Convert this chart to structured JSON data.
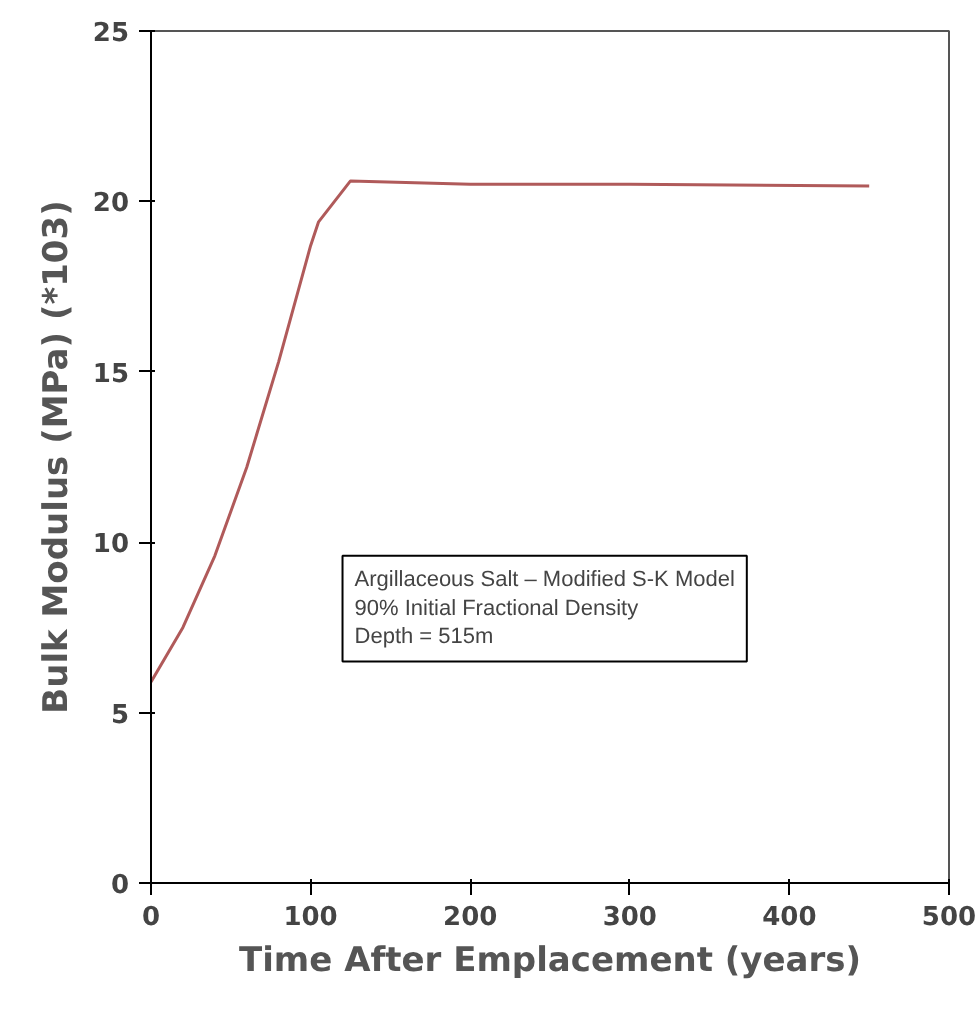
{
  "chart_data": {
    "type": "line",
    "xlabel": "Time After Emplacement (years)",
    "ylabel": "Bulk Modulus (MPa) (*103)",
    "x": [
      0,
      20,
      40,
      60,
      80,
      100,
      105,
      115,
      125,
      200,
      300,
      450
    ],
    "series": [
      {
        "color": "#b05a5a",
        "values": [
          5.9,
          7.5,
          9.6,
          12.2,
          15.3,
          18.7,
          19.4,
          20.0,
          20.6,
          20.5,
          20.5,
          20.45
        ]
      }
    ],
    "xlim": [
      0,
      500
    ],
    "xticks": [
      0,
      100,
      200,
      300,
      400,
      500
    ],
    "ylim": [
      0,
      25
    ],
    "yticks": [
      0,
      5,
      10,
      15,
      20,
      25
    ],
    "grid": false,
    "marker": "none",
    "line_style": "solid",
    "annotations": [
      "Argillaceous Salt – Modified S-K Model",
      "90% Initial Fractional Density",
      "Depth = 515m"
    ]
  }
}
